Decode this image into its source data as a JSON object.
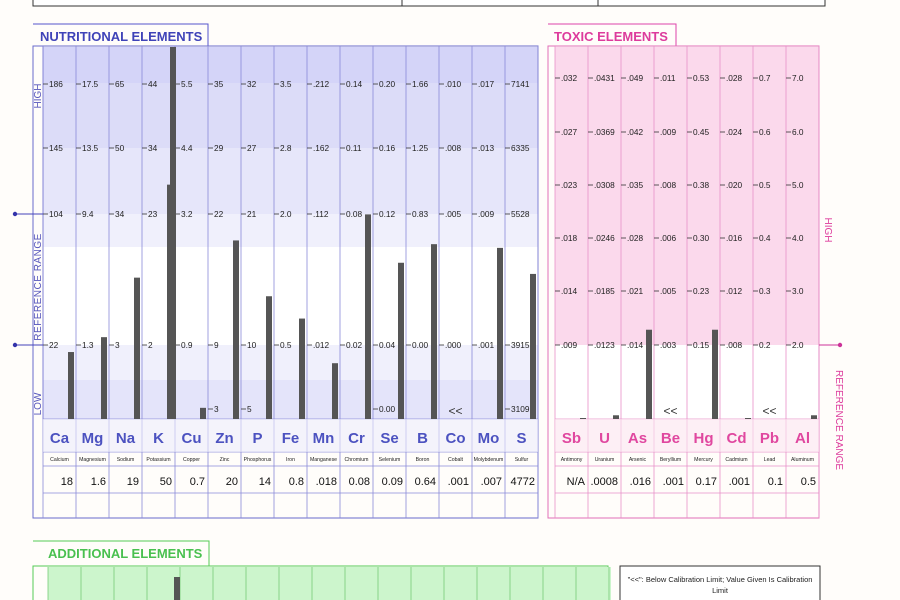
{
  "colors": {
    "nutritional_accent": "#5555cc",
    "toxic_accent": "#dd44aa",
    "additional_accent": "#55cc55",
    "bar": "#555555"
  },
  "top_row": [
    "",
    "",
    ""
  ],
  "nutritional": {
    "title": "NUTRITIONAL ELEMENTS",
    "label_high": "HIGH",
    "label_low": "LOW",
    "label_ref": "REFERENCE  RANGE",
    "below_limit_marker": "<<"
  },
  "toxic": {
    "title": "TOXIC ELEMENTS",
    "label_high": "HIGH",
    "label_ref": "REFERENCE RANGE",
    "below_limit_marker": "<<"
  },
  "additional": {
    "title": "ADDITIONAL ELEMENTS"
  },
  "legend": {
    "text_line1": "\"<<\": Below Calibration Limit; Value Given Is Calibration",
    "text_line2": "Limit"
  },
  "chart_data": [
    {
      "type": "bar",
      "title": "NUTRITIONAL ELEMENTS",
      "level_labels": [
        "HIGH",
        "REFERENCE  RANGE",
        "LOW"
      ],
      "categories": [
        "Ca",
        "Mg",
        "Na",
        "K",
        "Cu",
        "Zn",
        "P",
        "Fe",
        "Mn",
        "Cr",
        "Se",
        "B",
        "Co",
        "Mo",
        "S"
      ],
      "names": [
        "Calcium",
        "Magnesium",
        "Sodium",
        "Potassium",
        "Copper",
        "Zinc",
        "Phosphorus",
        "Iron",
        "Manganese",
        "Chromium",
        "Selenium",
        "Boron",
        "Cobalt",
        "Molybdenum",
        "Sulfur"
      ],
      "results": [
        "18",
        "1.6",
        "19",
        "50",
        "0.7",
        "20",
        "14",
        "0.8",
        ".018",
        "0.08",
        "0.09",
        "0.64",
        ".001",
        ".007",
        "4772"
      ],
      "scale_labels": [
        [
          "186",
          "145",
          "104",
          "22",
          ""
        ],
        [
          "17.5",
          "13.5",
          "9.4",
          "1.3",
          ""
        ],
        [
          "65",
          "50",
          "34",
          "3",
          ""
        ],
        [
          "44",
          "34",
          "23",
          "2",
          ""
        ],
        [
          "5.5",
          "4.4",
          "3.2",
          "0.9",
          ""
        ],
        [
          "35",
          "29",
          "22",
          "9",
          "3"
        ],
        [
          "32",
          "27",
          "21",
          "10",
          "5"
        ],
        [
          "3.5",
          "2.8",
          "2.0",
          "0.5",
          ""
        ],
        [
          ".212",
          ".162",
          ".112",
          ".012",
          ""
        ],
        [
          "0.14",
          "0.11",
          "0.08",
          "0.02",
          ""
        ],
        [
          "0.20",
          "0.16",
          "0.12",
          "0.04",
          "0.00"
        ],
        [
          "1.66",
          "1.25",
          "0.83",
          "0.00",
          ""
        ],
        [
          ".010",
          ".008",
          ".005",
          ".000",
          ""
        ],
        [
          ".017",
          ".013",
          ".009",
          ".001",
          ""
        ],
        [
          "7141",
          "6335",
          "5528",
          "3915",
          "3109"
        ]
      ],
      "below_calibration": [
        false,
        false,
        false,
        false,
        false,
        false,
        false,
        false,
        false,
        false,
        false,
        false,
        true,
        false,
        false
      ],
      "bar_levels": [
        0.18,
        0.22,
        0.38,
        0.63,
        0.03,
        0.48,
        0.33,
        0.27,
        0.15,
        0.55,
        0.42,
        0.47,
        0.0,
        0.46,
        0.39
      ],
      "ylim": [
        0,
        1
      ]
    },
    {
      "type": "bar",
      "title": "TOXIC ELEMENTS",
      "level_labels": [
        "HIGH",
        "REFERENCE RANGE"
      ],
      "categories": [
        "Sb",
        "U",
        "As",
        "Be",
        "Hg",
        "Cd",
        "Pb",
        "Al"
      ],
      "names": [
        "Antimony",
        "Uranium",
        "Arsenic",
        "Beryllium",
        "Mercury",
        "Cadmium",
        "Lead",
        "Aluminum"
      ],
      "results": [
        "N/A",
        ".0008",
        ".016",
        ".001",
        "0.17",
        ".001",
        "0.1",
        "0.5"
      ],
      "scale_labels": [
        [
          ".032",
          ".027",
          ".023",
          ".018",
          ".014",
          ".009"
        ],
        [
          ".0431",
          ".0369",
          ".0308",
          ".0246",
          ".0185",
          ".0123"
        ],
        [
          ".049",
          ".042",
          ".035",
          ".028",
          ".021",
          ".014"
        ],
        [
          ".011",
          ".009",
          ".008",
          ".006",
          ".005",
          ".003"
        ],
        [
          "0.53",
          "0.45",
          "0.38",
          "0.30",
          "0.23",
          "0.15"
        ],
        [
          ".028",
          ".024",
          ".020",
          ".016",
          ".012",
          ".008"
        ],
        [
          "0.7",
          "0.6",
          "0.5",
          "0.4",
          "0.3",
          "0.2"
        ],
        [
          "7.0",
          "6.0",
          "5.0",
          "4.0",
          "3.0",
          "2.0"
        ]
      ],
      "below_calibration": [
        false,
        false,
        false,
        true,
        false,
        false,
        true,
        false
      ],
      "bar_levels": [
        0.0,
        0.01,
        0.24,
        0.0,
        0.24,
        0.0,
        0.0,
        0.01
      ],
      "ylim": [
        0,
        1
      ]
    }
  ]
}
